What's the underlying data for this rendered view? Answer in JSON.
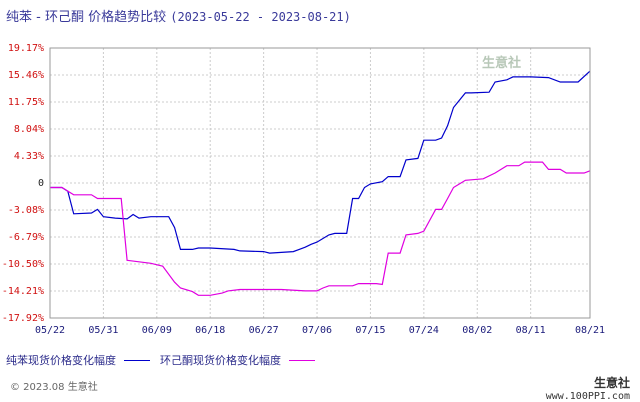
{
  "title": {
    "main": "纯苯 - 环己酮 价格趋势比较",
    "range": "(2023-05-22 - 2023-08-21)"
  },
  "watermark": "生意社",
  "legend": {
    "series1": "纯苯现货价格变化幅度",
    "series2": "环己酮现货价格变化幅度"
  },
  "footer": {
    "copyright": "© 2023.08 生意社",
    "brand_name": "生意社",
    "brand_site": "www.100PPI.com"
  },
  "colors": {
    "series1": "#0000cc",
    "series2": "#e000e0",
    "grid": "#cccccc"
  },
  "chart_data": {
    "type": "line",
    "x_ticks": [
      "05/22",
      "05/31",
      "06/09",
      "06/18",
      "06/27",
      "07/06",
      "07/15",
      "07/24",
      "08/02",
      "08/11",
      "08/21"
    ],
    "y_ticks": [
      "19.17%",
      "15.46%",
      "11.75%",
      "8.04%",
      "4.33%",
      "0",
      "-3.08%",
      "-6.79%",
      "-10.50%",
      "-14.21%",
      "-17.92%"
    ],
    "ylim": [
      -17.92,
      19.17
    ],
    "grid": true,
    "legend_position": "bottom",
    "series": [
      {
        "name": "纯苯现货价格变化幅度",
        "color": "#0000cc",
        "points": [
          [
            "05/22",
            0
          ],
          [
            "05/24",
            0
          ],
          [
            "05/25",
            -0.5
          ],
          [
            "05/26",
            -3.6
          ],
          [
            "05/29",
            -3.5
          ],
          [
            "05/30",
            -3.0
          ],
          [
            "05/31",
            -4.0
          ],
          [
            "06/02",
            -4.2
          ],
          [
            "06/04",
            -4.3
          ],
          [
            "06/05",
            -3.7
          ],
          [
            "06/06",
            -4.2
          ],
          [
            "06/08",
            -4.0
          ],
          [
            "06/11",
            -4.0
          ],
          [
            "06/12",
            -5.5
          ],
          [
            "06/13",
            -8.5
          ],
          [
            "06/15",
            -8.5
          ],
          [
            "06/16",
            -8.3
          ],
          [
            "06/18",
            -8.3
          ],
          [
            "06/22",
            -8.5
          ],
          [
            "06/23",
            -8.7
          ],
          [
            "06/27",
            -8.8
          ],
          [
            "06/28",
            -9.0
          ],
          [
            "07/02",
            -8.8
          ],
          [
            "07/03",
            -8.5
          ],
          [
            "07/04",
            -8.2
          ],
          [
            "07/05",
            -7.8
          ],
          [
            "07/06",
            -7.5
          ],
          [
            "07/08",
            -6.5
          ],
          [
            "07/09",
            -6.3
          ],
          [
            "07/11",
            -6.3
          ],
          [
            "07/12",
            -1.5
          ],
          [
            "07/13",
            -1.5
          ],
          [
            "07/14",
            0
          ],
          [
            "07/15",
            0.5
          ],
          [
            "07/17",
            0.8
          ],
          [
            "07/18",
            1.5
          ],
          [
            "07/20",
            1.5
          ],
          [
            "07/21",
            3.8
          ],
          [
            "07/23",
            4.0
          ],
          [
            "07/24",
            6.5
          ],
          [
            "07/26",
            6.5
          ],
          [
            "07/27",
            6.8
          ],
          [
            "07/28",
            8.5
          ],
          [
            "07/29",
            11.0
          ],
          [
            "07/31",
            13.0
          ],
          [
            "08/01",
            13.0
          ],
          [
            "08/04",
            13.1
          ],
          [
            "08/05",
            14.5
          ],
          [
            "08/07",
            14.8
          ],
          [
            "08/08",
            15.2
          ],
          [
            "08/11",
            15.2
          ],
          [
            "08/14",
            15.1
          ],
          [
            "08/16",
            14.5
          ],
          [
            "08/19",
            14.5
          ],
          [
            "08/21",
            16.0
          ]
        ]
      },
      {
        "name": "环己酮现货价格变化幅度",
        "color": "#e000e0",
        "points": [
          [
            "05/22",
            0
          ],
          [
            "05/24",
            0
          ],
          [
            "05/26",
            -1.0
          ],
          [
            "05/29",
            -1.0
          ],
          [
            "05/30",
            -1.5
          ],
          [
            "05/31",
            -1.5
          ],
          [
            "06/03",
            -1.5
          ],
          [
            "06/04",
            -10.0
          ],
          [
            "06/06",
            -10.2
          ],
          [
            "06/08",
            -10.4
          ],
          [
            "06/10",
            -10.8
          ],
          [
            "06/12",
            -13.0
          ],
          [
            "06/13",
            -13.8
          ],
          [
            "06/15",
            -14.3
          ],
          [
            "06/16",
            -14.8
          ],
          [
            "06/18",
            -14.8
          ],
          [
            "06/20",
            -14.5
          ],
          [
            "06/21",
            -14.2
          ],
          [
            "06/23",
            -14.0
          ],
          [
            "06/27",
            -14.0
          ],
          [
            "06/30",
            -14.0
          ],
          [
            "07/04",
            -14.2
          ],
          [
            "07/06",
            -14.2
          ],
          [
            "07/07",
            -13.8
          ],
          [
            "07/08",
            -13.5
          ],
          [
            "07/12",
            -13.5
          ],
          [
            "07/13",
            -13.2
          ],
          [
            "07/16",
            -13.2
          ],
          [
            "07/17",
            -13.3
          ],
          [
            "07/18",
            -9.0
          ],
          [
            "07/20",
            -9.0
          ],
          [
            "07/21",
            -6.5
          ],
          [
            "07/23",
            -6.3
          ],
          [
            "07/24",
            -6.0
          ],
          [
            "07/26",
            -3.0
          ],
          [
            "07/27",
            -3.0
          ],
          [
            "07/28",
            -1.5
          ],
          [
            "07/29",
            0
          ],
          [
            "07/30",
            0.5
          ],
          [
            "07/31",
            1.0
          ],
          [
            "08/03",
            1.2
          ],
          [
            "08/05",
            2.0
          ],
          [
            "08/07",
            3.0
          ],
          [
            "08/09",
            3.0
          ],
          [
            "08/10",
            3.5
          ],
          [
            "08/13",
            3.5
          ],
          [
            "08/14",
            2.5
          ],
          [
            "08/16",
            2.5
          ],
          [
            "08/17",
            2.0
          ],
          [
            "08/20",
            2.0
          ],
          [
            "08/21",
            2.3
          ]
        ]
      }
    ]
  }
}
